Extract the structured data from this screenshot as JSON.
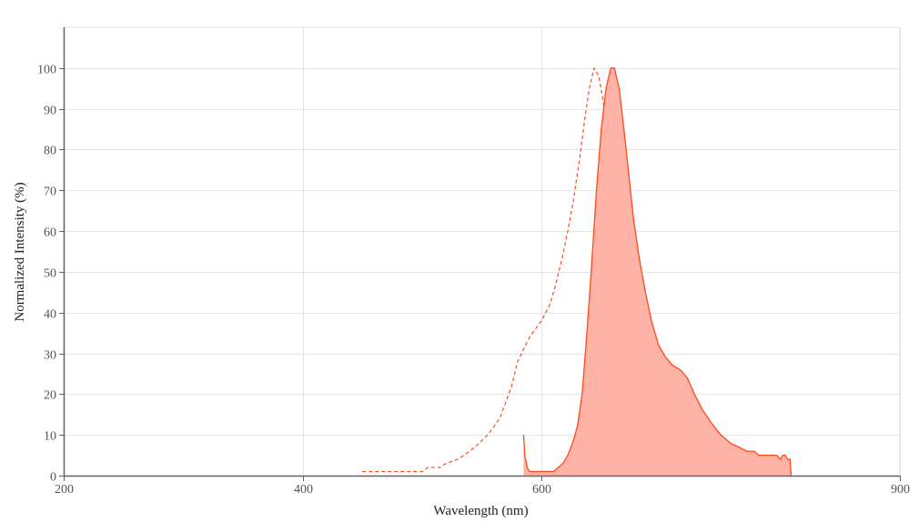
{
  "chart_data": {
    "type": "area",
    "title": "",
    "xlabel": "Wavelength (nm)",
    "ylabel": "Normalized Intensity (%)",
    "xlim": [
      200,
      900
    ],
    "ylim": [
      0,
      110
    ],
    "x_ticks": [
      200,
      400,
      600,
      900
    ],
    "y_ticks": [
      0,
      10,
      20,
      30,
      40,
      50,
      60,
      70,
      80,
      90,
      100
    ],
    "grid": true,
    "legend": "none",
    "colors": {
      "line": "#ff4a1c",
      "fill": "#ffb3a6",
      "grid": "#e6e6e6",
      "axis": "#666666"
    },
    "series": [
      {
        "style": "dashed",
        "points": [
          [
            450,
            1
          ],
          [
            470,
            1
          ],
          [
            490,
            1
          ],
          [
            500,
            1
          ],
          [
            505,
            2
          ],
          [
            515,
            2
          ],
          [
            520,
            3
          ],
          [
            530,
            4
          ],
          [
            540,
            6
          ],
          [
            548,
            8
          ],
          [
            555,
            10
          ],
          [
            565,
            14
          ],
          [
            570,
            18
          ],
          [
            575,
            22
          ],
          [
            580,
            28
          ],
          [
            590,
            34
          ],
          [
            600,
            38
          ],
          [
            607,
            42
          ],
          [
            612,
            47
          ],
          [
            617,
            53
          ],
          [
            622,
            60
          ],
          [
            627,
            68
          ],
          [
            632,
            78
          ],
          [
            636,
            87
          ],
          [
            640,
            95
          ],
          [
            644,
            100
          ],
          [
            648,
            98
          ],
          [
            652,
            91
          ],
          [
            656,
            80
          ],
          [
            660,
            66
          ],
          [
            664,
            52
          ],
          [
            668,
            40
          ],
          [
            672,
            28
          ],
          [
            676,
            18
          ],
          [
            680,
            10
          ],
          [
            685,
            5
          ],
          [
            690,
            3
          ],
          [
            698,
            2
          ],
          [
            705,
            1
          ],
          [
            710,
            0
          ]
        ]
      },
      {
        "style": "solid-filled",
        "points": [
          [
            585,
            10
          ],
          [
            586,
            5
          ],
          [
            588,
            2
          ],
          [
            590,
            1
          ],
          [
            600,
            1
          ],
          [
            610,
            1
          ],
          [
            614,
            2
          ],
          [
            618,
            3
          ],
          [
            622,
            5
          ],
          [
            626,
            8
          ],
          [
            630,
            12
          ],
          [
            634,
            20
          ],
          [
            638,
            35
          ],
          [
            642,
            52
          ],
          [
            646,
            70
          ],
          [
            650,
            85
          ],
          [
            654,
            95
          ],
          [
            658,
            100
          ],
          [
            661,
            100
          ],
          [
            665,
            95
          ],
          [
            669,
            85
          ],
          [
            673,
            74
          ],
          [
            677,
            63
          ],
          [
            682,
            53
          ],
          [
            687,
            45
          ],
          [
            692,
            38
          ],
          [
            698,
            32
          ],
          [
            704,
            29
          ],
          [
            710,
            27
          ],
          [
            716,
            26
          ],
          [
            722,
            24
          ],
          [
            728,
            20
          ],
          [
            735,
            16
          ],
          [
            742,
            13
          ],
          [
            750,
            10
          ],
          [
            758,
            8
          ],
          [
            765,
            7
          ],
          [
            772,
            6
          ],
          [
            778,
            6
          ],
          [
            782,
            5
          ],
          [
            790,
            5
          ],
          [
            797,
            5
          ],
          [
            800,
            4
          ],
          [
            802,
            5
          ],
          [
            804,
            5
          ],
          [
            806,
            4
          ],
          [
            808,
            4
          ],
          [
            809,
            0
          ]
        ]
      }
    ]
  }
}
